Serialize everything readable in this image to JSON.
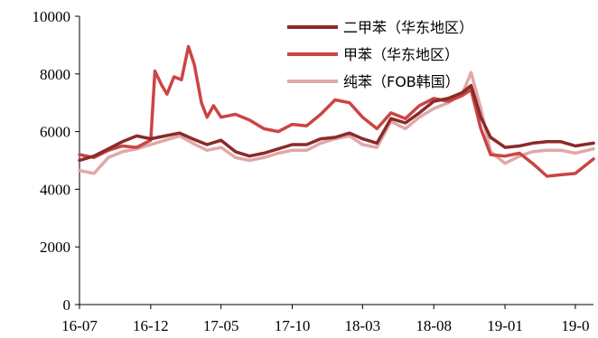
{
  "chart_data": {
    "type": "line",
    "title": "",
    "xlabel": "",
    "ylabel": "",
    "ylim": [
      0,
      10000
    ],
    "y_ticks": [
      0,
      2000,
      4000,
      6000,
      8000,
      10000
    ],
    "y_tick_labels": [
      "0",
      "2000",
      "4000",
      "6000",
      "8000",
      "10000"
    ],
    "x_range": [
      "2016-07-01",
      "2019-07-10"
    ],
    "x_ticks": [
      "2016-07-01",
      "2016-12-01",
      "2017-05-01",
      "2017-10-01",
      "2018-03-01",
      "2018-08-01",
      "2019-01-01",
      "2019-06-01"
    ],
    "x_tick_labels": [
      "16-07",
      "16-12",
      "17-05",
      "17-10",
      "18-03",
      "18-08",
      "19-01",
      "19-0"
    ],
    "grid": false,
    "legend_position": "top-right",
    "series": [
      {
        "name": "二甲苯（华东地区）",
        "color": "#8b2a2a",
        "points": [
          [
            "2016-07-01",
            5000
          ],
          [
            "2016-08-01",
            5150
          ],
          [
            "2016-09-01",
            5400
          ],
          [
            "2016-10-01",
            5650
          ],
          [
            "2016-11-01",
            5850
          ],
          [
            "2016-12-01",
            5750
          ],
          [
            "2017-01-01",
            5850
          ],
          [
            "2017-02-01",
            5950
          ],
          [
            "2017-03-01",
            5750
          ],
          [
            "2017-04-01",
            5550
          ],
          [
            "2017-05-01",
            5700
          ],
          [
            "2017-06-01",
            5300
          ],
          [
            "2017-07-01",
            5150
          ],
          [
            "2017-08-01",
            5250
          ],
          [
            "2017-09-01",
            5400
          ],
          [
            "2017-10-01",
            5550
          ],
          [
            "2017-11-01",
            5550
          ],
          [
            "2017-12-01",
            5750
          ],
          [
            "2018-01-01",
            5800
          ],
          [
            "2018-02-01",
            5950
          ],
          [
            "2018-03-01",
            5750
          ],
          [
            "2018-04-01",
            5600
          ],
          [
            "2018-05-01",
            6450
          ],
          [
            "2018-06-01",
            6300
          ],
          [
            "2018-07-01",
            6650
          ],
          [
            "2018-08-01",
            7050
          ],
          [
            "2018-09-01",
            7150
          ],
          [
            "2018-10-01",
            7350
          ],
          [
            "2018-10-20",
            7600
          ],
          [
            "2018-11-10",
            6500
          ],
          [
            "2018-12-01",
            5800
          ],
          [
            "2019-01-01",
            5450
          ],
          [
            "2019-02-01",
            5500
          ],
          [
            "2019-03-01",
            5600
          ],
          [
            "2019-04-01",
            5650
          ],
          [
            "2019-05-01",
            5650
          ],
          [
            "2019-06-01",
            5500
          ],
          [
            "2019-07-10",
            5600
          ]
        ]
      },
      {
        "name": "甲苯（华东地区）",
        "color": "#cc4444",
        "points": [
          [
            "2016-07-01",
            5200
          ],
          [
            "2016-08-01",
            5100
          ],
          [
            "2016-09-01",
            5350
          ],
          [
            "2016-10-01",
            5500
          ],
          [
            "2016-11-01",
            5450
          ],
          [
            "2016-12-01",
            5700
          ],
          [
            "2016-12-10",
            8100
          ],
          [
            "2016-12-25",
            7600
          ],
          [
            "2017-01-05",
            7300
          ],
          [
            "2017-01-20",
            7900
          ],
          [
            "2017-02-05",
            7800
          ],
          [
            "2017-02-20",
            8950
          ],
          [
            "2017-03-05",
            8300
          ],
          [
            "2017-03-20",
            7000
          ],
          [
            "2017-04-01",
            6500
          ],
          [
            "2017-04-15",
            6900
          ],
          [
            "2017-05-01",
            6500
          ],
          [
            "2017-06-01",
            6600
          ],
          [
            "2017-07-01",
            6400
          ],
          [
            "2017-08-01",
            6100
          ],
          [
            "2017-09-01",
            6000
          ],
          [
            "2017-10-01",
            6250
          ],
          [
            "2017-11-01",
            6200
          ],
          [
            "2017-12-01",
            6600
          ],
          [
            "2018-01-01",
            7100
          ],
          [
            "2018-02-01",
            7000
          ],
          [
            "2018-03-01",
            6500
          ],
          [
            "2018-04-01",
            6100
          ],
          [
            "2018-05-01",
            6650
          ],
          [
            "2018-06-01",
            6450
          ],
          [
            "2018-07-01",
            6900
          ],
          [
            "2018-08-01",
            7150
          ],
          [
            "2018-09-01",
            7050
          ],
          [
            "2018-10-01",
            7250
          ],
          [
            "2018-10-20",
            7450
          ],
          [
            "2018-11-10",
            6100
          ],
          [
            "2018-12-01",
            5200
          ],
          [
            "2019-01-01",
            5150
          ],
          [
            "2019-02-01",
            5250
          ],
          [
            "2019-03-01",
            4900
          ],
          [
            "2019-04-01",
            4450
          ],
          [
            "2019-05-01",
            4500
          ],
          [
            "2019-06-01",
            4550
          ],
          [
            "2019-07-10",
            5050
          ]
        ]
      },
      {
        "name": "纯苯（FOB韩国）",
        "color": "#e0a8a8",
        "points": [
          [
            "2016-07-01",
            4650
          ],
          [
            "2016-08-01",
            4550
          ],
          [
            "2016-09-01",
            5100
          ],
          [
            "2016-10-01",
            5300
          ],
          [
            "2016-11-01",
            5400
          ],
          [
            "2016-12-01",
            5550
          ],
          [
            "2017-01-01",
            5700
          ],
          [
            "2017-02-01",
            5850
          ],
          [
            "2017-03-01",
            5600
          ],
          [
            "2017-04-01",
            5350
          ],
          [
            "2017-05-01",
            5450
          ],
          [
            "2017-06-01",
            5100
          ],
          [
            "2017-07-01",
            5000
          ],
          [
            "2017-08-01",
            5100
          ],
          [
            "2017-09-01",
            5250
          ],
          [
            "2017-10-01",
            5350
          ],
          [
            "2017-11-01",
            5350
          ],
          [
            "2017-12-01",
            5600
          ],
          [
            "2018-01-01",
            5750
          ],
          [
            "2018-02-01",
            5850
          ],
          [
            "2018-03-01",
            5550
          ],
          [
            "2018-04-01",
            5450
          ],
          [
            "2018-05-01",
            6350
          ],
          [
            "2018-06-01",
            6100
          ],
          [
            "2018-07-01",
            6500
          ],
          [
            "2018-08-01",
            6800
          ],
          [
            "2018-09-01",
            7000
          ],
          [
            "2018-10-01",
            7300
          ],
          [
            "2018-10-20",
            8050
          ],
          [
            "2018-11-10",
            6800
          ],
          [
            "2018-12-01",
            5300
          ],
          [
            "2019-01-01",
            4900
          ],
          [
            "2019-02-01",
            5150
          ],
          [
            "2019-03-01",
            5300
          ],
          [
            "2019-04-01",
            5350
          ],
          [
            "2019-05-01",
            5350
          ],
          [
            "2019-06-01",
            5250
          ],
          [
            "2019-07-10",
            5400
          ]
        ]
      }
    ]
  }
}
